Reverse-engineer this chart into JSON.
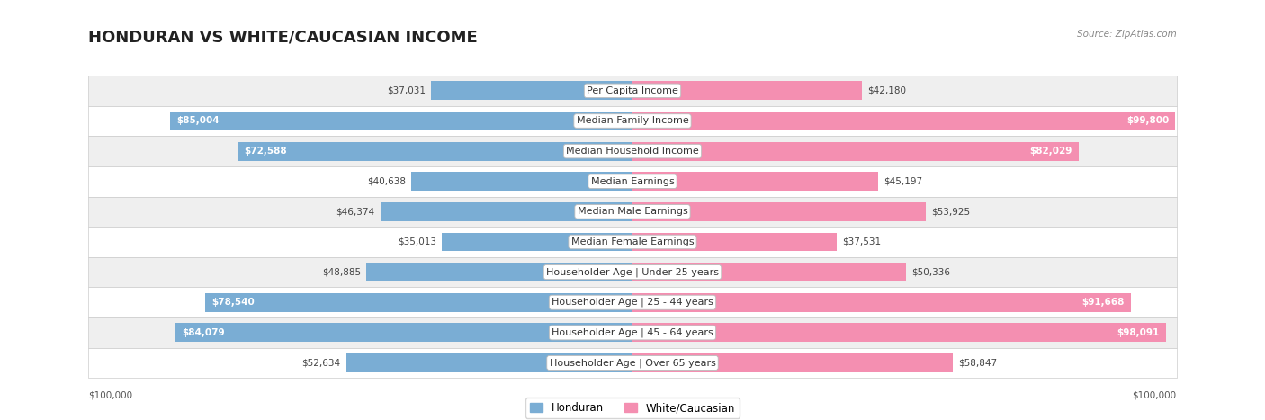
{
  "title": "HONDURAN VS WHITE/CAUCASIAN INCOME",
  "source": "Source: ZipAtlas.com",
  "max_value": 100000,
  "categories": [
    "Per Capita Income",
    "Median Family Income",
    "Median Household Income",
    "Median Earnings",
    "Median Male Earnings",
    "Median Female Earnings",
    "Householder Age | Under 25 years",
    "Householder Age | 25 - 44 years",
    "Householder Age | 45 - 64 years",
    "Householder Age | Over 65 years"
  ],
  "honduran_values": [
    37031,
    85004,
    72588,
    40638,
    46374,
    35013,
    48885,
    78540,
    84079,
    52634
  ],
  "white_values": [
    42180,
    99800,
    82029,
    45197,
    53925,
    37531,
    50336,
    91668,
    98091,
    58847
  ],
  "honduran_color": "#7aadd4",
  "white_color": "#f48fb1",
  "row_bg_colors": [
    "#efefef",
    "#ffffff",
    "#efefef",
    "#ffffff",
    "#efefef",
    "#ffffff",
    "#efefef",
    "#ffffff",
    "#efefef",
    "#ffffff"
  ],
  "title_fontsize": 13,
  "label_fontsize": 8.0,
  "value_fontsize": 7.5,
  "legend_fontsize": 8.5,
  "xlabel_left": "$100,000",
  "xlabel_right": "$100,000"
}
